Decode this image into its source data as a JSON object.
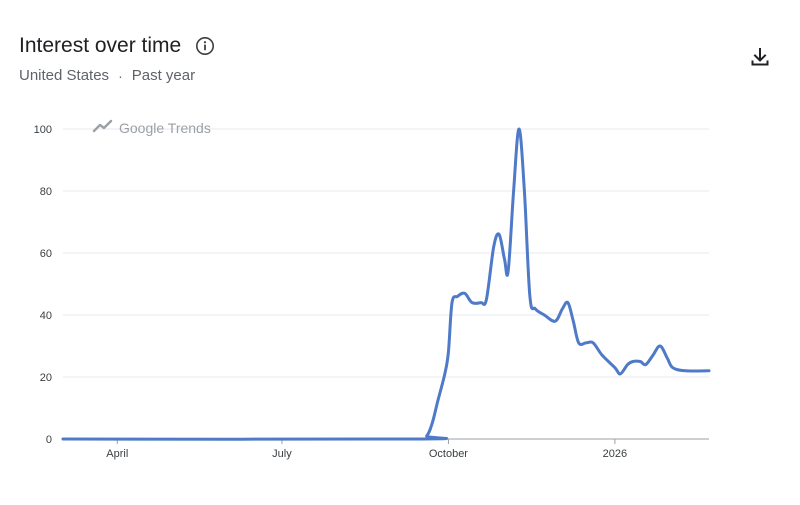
{
  "header": {
    "title": "Interest over time",
    "location": "United States",
    "separator": "·",
    "timeframe": "Past year"
  },
  "watermark": {
    "text": "Google Trends",
    "icon": "trend-line-icon"
  },
  "icons": {
    "info": "info-icon",
    "download": "download-icon"
  },
  "colors": {
    "line": "#4e7ac7",
    "grid": "#e8eaed",
    "axis": "#9aa0a6",
    "text": "#3c4043"
  },
  "chart_data": {
    "type": "line",
    "title": "Interest over time",
    "xlabel": "",
    "ylabel": "",
    "ylim": [
      0,
      100
    ],
    "yticks": [
      0,
      20,
      40,
      60,
      80,
      100
    ],
    "xlim": [
      "2025-03-02",
      "2026-02-22"
    ],
    "xticks": [
      {
        "label": "April",
        "date": "2025-04-01"
      },
      {
        "label": "July",
        "date": "2025-07-01"
      },
      {
        "label": "October",
        "date": "2025-10-01"
      },
      {
        "label": "2026",
        "date": "2026-01-01"
      }
    ],
    "grid": true,
    "series": [
      {
        "values": [
          [
            "2025-03-02",
            0
          ],
          [
            "2025-09-14",
            0
          ],
          [
            "2025-09-19",
            1
          ],
          [
            "2025-09-22",
            5
          ],
          [
            "2025-09-25",
            12
          ],
          [
            "2025-09-29",
            21
          ],
          [
            "2025-10-01",
            28
          ],
          [
            "2025-10-03",
            44
          ],
          [
            "2025-10-06",
            46
          ],
          [
            "2025-10-10",
            47
          ],
          [
            "2025-10-14",
            44
          ],
          [
            "2025-10-19",
            44
          ],
          [
            "2025-10-22",
            45
          ],
          [
            "2025-10-26",
            62
          ],
          [
            "2025-10-29",
            66
          ],
          [
            "2025-11-01",
            58
          ],
          [
            "2025-11-03",
            54
          ],
          [
            "2025-11-06",
            80
          ],
          [
            "2025-11-09",
            100
          ],
          [
            "2025-11-12",
            80
          ],
          [
            "2025-11-15",
            46
          ],
          [
            "2025-11-18",
            42
          ],
          [
            "2025-11-23",
            40
          ],
          [
            "2025-11-29",
            38
          ],
          [
            "2025-12-03",
            42
          ],
          [
            "2025-12-06",
            44
          ],
          [
            "2025-12-09",
            38
          ],
          [
            "2025-12-12",
            31
          ],
          [
            "2025-12-16",
            31
          ],
          [
            "2025-12-20",
            31
          ],
          [
            "2025-12-25",
            27
          ],
          [
            "2026-01-01",
            23
          ],
          [
            "2026-01-04",
            21
          ],
          [
            "2026-01-08",
            24
          ],
          [
            "2026-01-11",
            25
          ],
          [
            "2026-01-15",
            25
          ],
          [
            "2026-01-18",
            24
          ],
          [
            "2026-01-22",
            27
          ],
          [
            "2026-01-26",
            30
          ],
          [
            "2026-01-30",
            26
          ],
          [
            "2026-02-02",
            23
          ],
          [
            "2026-02-09",
            22
          ],
          [
            "2026-02-22",
            22
          ]
        ]
      }
    ]
  }
}
